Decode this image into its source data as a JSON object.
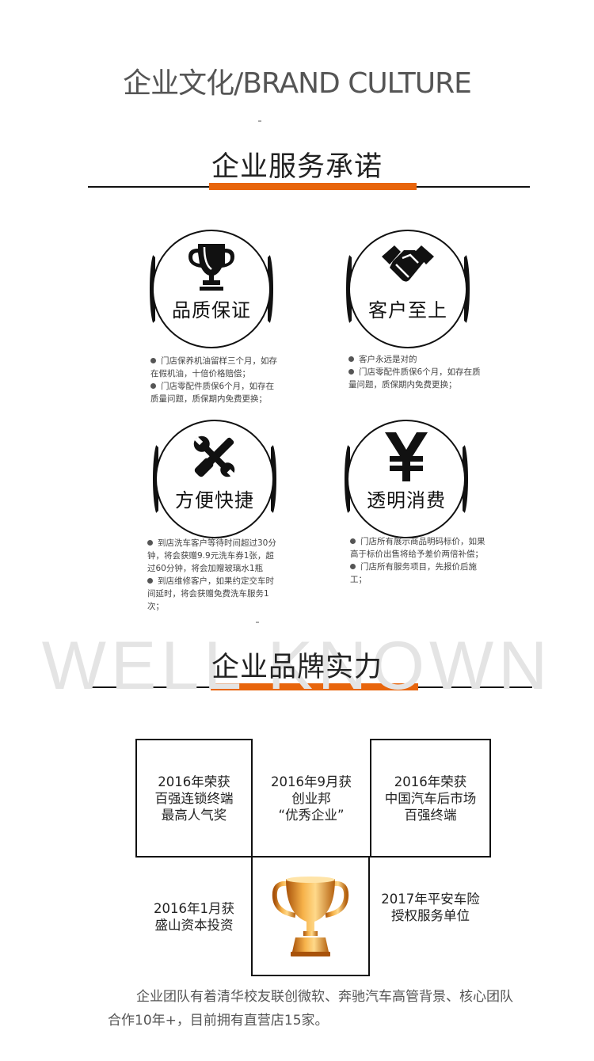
{
  "header": {
    "title": "企业文化/BRAND CULTURE"
  },
  "service_section": {
    "title": "企业服务承诺",
    "badges": [
      {
        "label": "品质保证",
        "icon": "trophy-icon",
        "bullets": [
          "门店保养机油留样三个月，如存在假机油，十倍价格赔偿；",
          "门店零配件质保6个月，如存在质量问题，质保期内免费更换；"
        ]
      },
      {
        "label": "客户至上",
        "icon": "handshake-icon",
        "bullets": [
          "客户永远是对的",
          "门店零配件质保6个月，如存在质量问题，质保期内免费更换；"
        ]
      },
      {
        "label": "方便快捷",
        "icon": "tools-icon",
        "bullets": [
          "到店洗车客户等待时间超过30分钟，将会获赠9.9元洗车券1张，超过60分钟，将会加赠玻璃水1瓶",
          "到店维修客户，如果约定交车时间延时，将会获赠免费洗车服务1次；"
        ]
      },
      {
        "label": "透明消费",
        "icon": "yen-icon",
        "bullets": [
          "门店所有展示商品明码标价，如果高于标价出售将给予差价两倍补偿；",
          "门店所有服务项目，先报价后施工；"
        ]
      }
    ]
  },
  "brand_section": {
    "watermark": "WELL KNOWN",
    "title": "企业品牌实力",
    "awards": [
      {
        "lines": [
          "2016年荣获",
          "百强连锁终端",
          "最高人气奖"
        ]
      },
      {
        "lines": [
          "2016年9月获",
          "创业邦",
          "“优秀企业”"
        ]
      },
      {
        "lines": [
          "2016年荣获",
          "中国汽车后市场",
          "百强终端"
        ]
      },
      {
        "lines": [
          "2016年1月获",
          "盛山资本投资"
        ]
      },
      {
        "lines": [
          "2017年平安车险",
          "授权服务单位"
        ]
      }
    ],
    "trophy_icon": "gold-trophy-icon"
  },
  "footer": {
    "text": "企业团队有着清华校友联创微软、奔驰汽车高管背景、核心团队合作10年+，目前拥有直营店15家。"
  },
  "colors": {
    "accent": "#e8650c",
    "text": "#222222",
    "muted": "#555555"
  }
}
